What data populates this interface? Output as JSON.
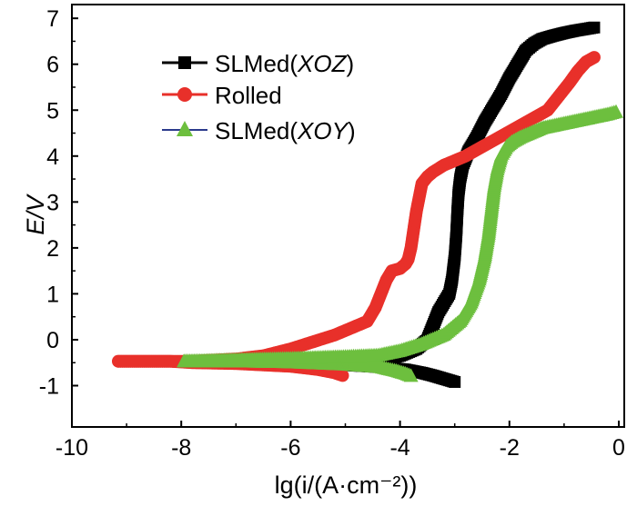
{
  "chart_data": {
    "type": "line",
    "title": "",
    "xlabel": "lg(i/(A·cm⁻²))",
    "ylabel": "E/V",
    "xlim": [
      -10,
      0.1
    ],
    "ylim": [
      -1.9,
      7.3
    ],
    "grid": false,
    "legend_position": "top-left",
    "x_ticks": [
      -10,
      -8,
      -6,
      -4,
      -2,
      0
    ],
    "x_tick_labels": [
      "-10",
      "-8",
      "-6",
      "-4",
      "-2",
      "0"
    ],
    "y_ticks": [
      -1,
      0,
      1,
      2,
      3,
      4,
      5,
      6,
      7
    ],
    "y_tick_labels": [
      "-1",
      "0",
      "1",
      "2",
      "3",
      "4",
      "5",
      "6",
      "7"
    ],
    "series": [
      {
        "name": "SLMed(XOZ)",
        "name_main": "SLMed(",
        "name_italic": "XOZ",
        "name_close": ")",
        "color": "#000000",
        "marker": "square",
        "x": [
          -7.0,
          -6.0,
          -5.0,
          -4.3,
          -3.9,
          -3.6,
          -3.4,
          -3.2,
          -3.0
        ],
        "y": [
          -0.5,
          -0.5,
          -0.55,
          -0.6,
          -0.65,
          -0.72,
          -0.78,
          -0.85,
          -0.92
        ],
        "anodic_x": [
          -7.0,
          -6.0,
          -5.0,
          -4.4,
          -4.0,
          -3.7,
          -3.5,
          -3.4,
          -3.3,
          -3.2,
          -3.1,
          -3.05,
          -3.0,
          -2.97,
          -2.95,
          -2.93,
          -2.9,
          -2.85,
          -2.75,
          -2.6,
          -2.45,
          -2.3,
          -2.15,
          -2.0,
          -1.85,
          -1.7,
          -1.55,
          -1.4,
          -1.2,
          -1.0,
          -0.8,
          -0.6,
          -0.45
        ],
        "anodic_y": [
          -0.5,
          -0.5,
          -0.5,
          -0.45,
          -0.35,
          -0.2,
          0.0,
          0.3,
          0.6,
          0.8,
          1.0,
          1.3,
          1.8,
          2.3,
          2.8,
          3.2,
          3.5,
          3.8,
          4.1,
          4.4,
          4.75,
          5.05,
          5.35,
          5.7,
          6.0,
          6.3,
          6.45,
          6.55,
          6.62,
          6.68,
          6.73,
          6.77,
          6.8
        ]
      },
      {
        "name": "Rolled",
        "name_main": "Rolled",
        "name_italic": "",
        "name_close": "",
        "color": "#e8302a",
        "marker": "circle",
        "x": [
          -9.15,
          -8.2,
          -7.8,
          -7.0,
          -6.0,
          -5.5,
          -5.2,
          -5.05
        ],
        "y": [
          -0.47,
          -0.47,
          -0.5,
          -0.52,
          -0.58,
          -0.65,
          -0.72,
          -0.78
        ],
        "anodic_x": [
          -9.15,
          -8.2,
          -7.8,
          -7.0,
          -6.5,
          -6.0,
          -5.6,
          -5.2,
          -4.9,
          -4.6,
          -4.45,
          -4.35,
          -4.25,
          -4.15,
          -4.0,
          -3.9,
          -3.85,
          -3.8,
          -3.75,
          -3.7,
          -3.65,
          -3.6,
          -3.5,
          -3.4,
          -3.2,
          -3.0,
          -2.8,
          -2.5,
          -2.2,
          -1.9,
          -1.6,
          -1.3,
          -1.1,
          -0.9,
          -0.75,
          -0.6,
          -0.45
        ],
        "anodic_y": [
          -0.47,
          -0.47,
          -0.47,
          -0.42,
          -0.35,
          -0.2,
          -0.05,
          0.1,
          0.25,
          0.4,
          0.7,
          1.0,
          1.3,
          1.5,
          1.55,
          1.65,
          1.75,
          2.0,
          2.4,
          2.8,
          3.1,
          3.4,
          3.55,
          3.65,
          3.8,
          3.9,
          4.0,
          4.2,
          4.4,
          4.6,
          4.8,
          5.0,
          5.3,
          5.6,
          5.85,
          6.05,
          6.15
        ]
      },
      {
        "name": "SLMed(XOY)",
        "name_main": "SLMed(",
        "name_italic": "XOY",
        "name_close": ")",
        "color": "#6dbf3e",
        "line_color": "#2b3a8c",
        "marker": "triangle",
        "x": [
          -7.95,
          -7.0,
          -6.0,
          -5.0,
          -4.4,
          -4.1,
          -3.9,
          -3.8
        ],
        "y": [
          -0.48,
          -0.48,
          -0.5,
          -0.55,
          -0.6,
          -0.68,
          -0.75,
          -0.8
        ],
        "anodic_x": [
          -7.95,
          -7.0,
          -6.0,
          -5.0,
          -4.4,
          -4.0,
          -3.6,
          -3.2,
          -2.9,
          -2.7,
          -2.55,
          -2.45,
          -2.38,
          -2.33,
          -2.28,
          -2.22,
          -2.15,
          -2.05,
          -1.95,
          -1.8,
          -1.6,
          -1.4,
          -1.2,
          -1.0,
          -0.8,
          -0.6,
          -0.4,
          -0.2,
          -0.05
        ],
        "anodic_y": [
          -0.48,
          -0.45,
          -0.42,
          -0.38,
          -0.35,
          -0.25,
          -0.1,
          0.1,
          0.4,
          0.8,
          1.3,
          1.8,
          2.3,
          2.8,
          3.3,
          3.7,
          4.0,
          4.2,
          4.3,
          4.4,
          4.5,
          4.6,
          4.65,
          4.7,
          4.75,
          4.8,
          4.85,
          4.9,
          4.95
        ]
      }
    ]
  }
}
